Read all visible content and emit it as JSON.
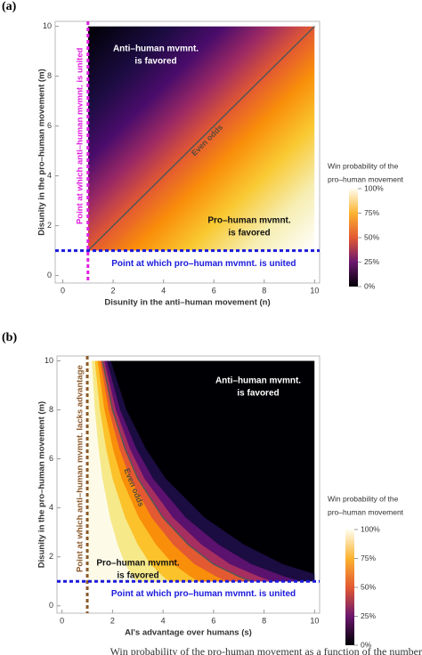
{
  "chart_data": [
    {
      "type": "heatmap",
      "panel_label": "(a)",
      "xlabel": "Disunity in the anti–human movement  (n)",
      "ylabel": "Disunity in the pro–human movement  (m)",
      "xlim": [
        -0.3,
        10.2
      ],
      "ylim": [
        -0.3,
        10.2
      ],
      "xticks": [
        0,
        2,
        4,
        6,
        8,
        10
      ],
      "yticks": [
        0,
        2,
        4,
        6,
        8,
        10
      ],
      "extent": {
        "x": [
          1,
          10
        ],
        "y": [
          1,
          10
        ]
      },
      "even_odds": {
        "label": "Even odds",
        "x": [
          1,
          10
        ],
        "y": [
          1,
          10
        ]
      },
      "reference_lines": [
        {
          "axis": "x",
          "value": 1,
          "color": "#e020e0",
          "label": "Point at which anti–human mvmnt. is united"
        },
        {
          "axis": "y",
          "value": 1,
          "color": "#1a1adc",
          "label": "Point at which pro–human mvmnt. is united"
        }
      ],
      "regions": {
        "dark": [
          "Anti–human mvmnt.",
          "is favored"
        ],
        "light": [
          "Pro–human mvmnt.",
          "is favored"
        ]
      },
      "colorbar": {
        "title": [
          "Win probability of the",
          "pro–human movement"
        ],
        "lim": [
          0,
          100
        ],
        "ticks": [
          {
            "value": 0,
            "label": "0%"
          },
          {
            "value": 25,
            "label": "25%"
          },
          {
            "value": 50,
            "label": "50%"
          },
          {
            "value": 75,
            "label": "75%"
          },
          {
            "value": 100,
            "label": "100%"
          }
        ]
      }
    },
    {
      "type": "heatmap",
      "panel_label": "(b)",
      "xlabel": "AI's advantage over humans (s)",
      "ylabel": "Disunity in the pro–human movement (m)",
      "xlim": [
        -0.2,
        10.2
      ],
      "ylim": [
        -0.3,
        10.2
      ],
      "xticks": [
        0,
        2,
        4,
        6,
        8,
        10
      ],
      "yticks": [
        0,
        2,
        4,
        6,
        8,
        10
      ],
      "extent": {
        "x": [
          1,
          10
        ],
        "y": [
          1,
          10
        ]
      },
      "even_odds": {
        "label": "Even odds",
        "x": [
          1.6,
          2,
          2.5,
          3,
          4,
          5,
          6,
          7,
          7.5
        ],
        "y": [
          10,
          8,
          6.4,
          5.2,
          3.6,
          2.5,
          1.7,
          1.2,
          1
        ]
      },
      "reference_lines": [
        {
          "axis": "x",
          "value": 1,
          "color": "#8b5a2b",
          "label": "Point at which anti–human mvmnt. lacks advantage"
        },
        {
          "axis": "y",
          "value": 1,
          "color": "#1a1adc",
          "label": "Point at which pro–human mvmnt. is united"
        }
      ],
      "regions": {
        "dark": [
          "Anti–human mvmnt.",
          "is favored"
        ],
        "light": [
          "Pro–human mvmnt.",
          "is favored"
        ]
      },
      "colorbar": {
        "title": [
          "Win probability of the",
          "pro–human movement"
        ],
        "lim": [
          0,
          100
        ],
        "ticks": [
          {
            "value": 0,
            "label": "0%"
          },
          {
            "value": 25,
            "label": "25%"
          },
          {
            "value": 50,
            "label": "50%"
          },
          {
            "value": 75,
            "label": "75%"
          },
          {
            "value": 100,
            "label": "100%"
          }
        ]
      }
    }
  ],
  "caption": "Win probability of the pro-human movement as a function of the number"
}
